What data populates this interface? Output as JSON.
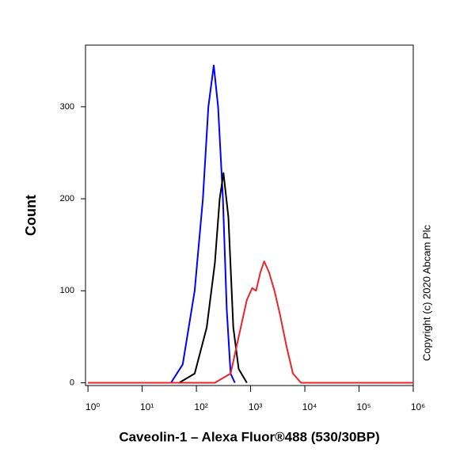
{
  "chart_data": {
    "type": "line",
    "x_label": "Caveolin-1 – Alexa Fluor®488 (530/30BP)",
    "y_label": "Count",
    "annotation": "Copyright (c) 2020 Abcam Plc",
    "xscale": "log",
    "xlim": [
      0.9,
      1000000
    ],
    "xticks": [
      {
        "value": 1,
        "label": "10⁰"
      },
      {
        "value": 10,
        "label": "10¹"
      },
      {
        "value": 100,
        "label": "10²"
      },
      {
        "value": 1000,
        "label": "10³"
      },
      {
        "value": 10000,
        "label": "10⁴"
      },
      {
        "value": 100000,
        "label": "10⁵"
      },
      {
        "value": 1000000,
        "label": "10⁶"
      }
    ],
    "ylim": [
      -3,
      367
    ],
    "yticks": [
      0,
      100,
      200,
      300
    ],
    "series": [
      {
        "color": "#0000ff",
        "x": [
          34,
          56,
          93,
          132,
          166,
          209,
          251,
          309,
          363,
          427,
          513
        ],
        "values": [
          0,
          20,
          100,
          200,
          300,
          345,
          300,
          200,
          80,
          10,
          0
        ]
      },
      {
        "color": "#000000",
        "x": [
          48,
          93,
          155,
          219,
          269,
          316,
          389,
          479,
          603,
          851
        ],
        "values": [
          0,
          10,
          60,
          130,
          200,
          228,
          180,
          60,
          15,
          0
        ]
      },
      {
        "color": "#e8252a",
        "x": [
          1,
          219,
          427,
          603,
          851,
          1072,
          1259,
          1514,
          1778,
          2188,
          2754,
          3467,
          4571,
          6026,
          8511,
          1000000
        ],
        "values": [
          0,
          0,
          10,
          50,
          90,
          103,
          100,
          120,
          132,
          120,
          100,
          75,
          40,
          10,
          0,
          0
        ]
      }
    ]
  }
}
